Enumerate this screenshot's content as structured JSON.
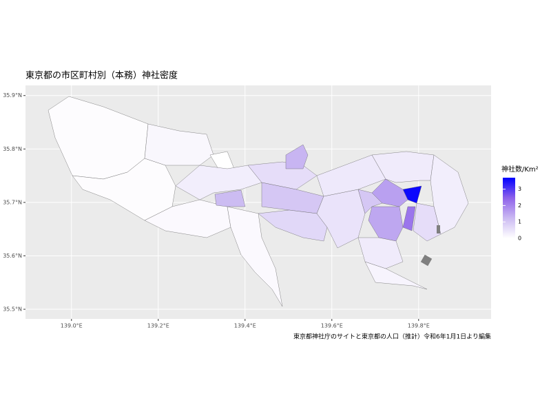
{
  "chart_data": {
    "type": "choropleth",
    "title": "東京都の市区町村別（本務）神社密度",
    "caption": "東京都神社庁のサイトと東京都の人口（推計）令和6年1月1日より編集",
    "legend_title": "神社数/Km²",
    "legend_lim": [
      0,
      3.7
    ],
    "legend_ticks": [
      0,
      1,
      2,
      3
    ],
    "colorscale": [
      "#ffffff",
      "#cbbaf2",
      "#8e62ea",
      "#0000ff"
    ],
    "xlim": [
      138.894,
      139.967
    ],
    "xticks": [
      {
        "value": 139.0,
        "label": "139.0°E"
      },
      {
        "value": 139.2,
        "label": "139.2°E"
      },
      {
        "value": 139.4,
        "label": "139.4°E"
      },
      {
        "value": 139.6,
        "label": "139.6°E"
      },
      {
        "value": 139.8,
        "label": "139.8°E"
      }
    ],
    "ylim": [
      35.482,
      35.919
    ],
    "yticks": [
      {
        "value": 35.5,
        "label": "35.5°N"
      },
      {
        "value": 35.6,
        "label": "35.6°N"
      },
      {
        "value": 35.7,
        "label": "35.7°N"
      },
      {
        "value": 35.8,
        "label": "35.8°N"
      },
      {
        "value": 35.9,
        "label": "35.9°N"
      }
    ],
    "grid": true,
    "values": [
      0.05,
      0.15,
      0.05,
      0.1,
      0.1,
      0,
      0.3,
      1.2,
      0.6,
      1.3,
      1.0,
      0.7,
      0.5,
      0.4,
      0.35,
      0.3,
      3.6,
      1.6,
      2.2,
      1.5,
      1.0,
      0.6,
      0.35,
      0.2
    ]
  }
}
